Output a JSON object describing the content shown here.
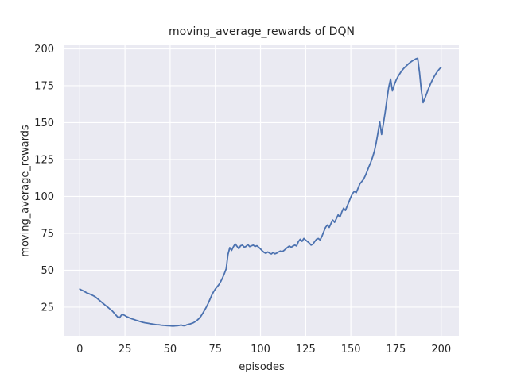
{
  "chart_data": {
    "type": "line",
    "title": "moving_average_rewards of DQN",
    "xlabel": "episodes",
    "ylabel": "moving_average_rewards",
    "x_ticks": [
      0,
      25,
      50,
      75,
      100,
      125,
      150,
      175,
      200
    ],
    "y_ticks": [
      25,
      50,
      75,
      100,
      125,
      150,
      175,
      200
    ],
    "xlim": [
      -8.5,
      209.8
    ],
    "ylim": [
      5.6,
      202.4
    ],
    "grid": true,
    "legend_position": "none",
    "style": "seaborn-darkgrid",
    "colors": {
      "line": "#4c72b0",
      "plot_background": "#eaeaf2",
      "gridline": "#ffffff",
      "figure_background": "#ffffff",
      "text": "#262626"
    },
    "series": [
      {
        "name": "moving_average_rewards",
        "x_start": 0,
        "x_step": 1,
        "values": [
          37.2,
          36.5,
          36.0,
          35.3,
          34.6,
          34.1,
          33.6,
          33.0,
          32.4,
          31.5,
          30.5,
          29.5,
          28.4,
          27.4,
          26.4,
          25.4,
          24.4,
          23.4,
          22.4,
          21.0,
          19.6,
          18.3,
          17.8,
          19.6,
          19.9,
          19.3,
          18.5,
          18.0,
          17.5,
          17.0,
          16.6,
          16.2,
          15.8,
          15.4,
          15.0,
          14.7,
          14.4,
          14.2,
          14.0,
          13.8,
          13.6,
          13.4,
          13.2,
          13.1,
          13.0,
          12.8,
          12.7,
          12.6,
          12.5,
          12.4,
          12.3,
          12.2,
          12.2,
          12.3,
          12.4,
          12.6,
          12.9,
          12.5,
          12.4,
          12.9,
          13.3,
          13.6,
          14.0,
          14.5,
          15.2,
          16.2,
          17.3,
          18.8,
          20.7,
          22.8,
          25.0,
          27.4,
          30.2,
          33.0,
          35.3,
          37.2,
          38.8,
          40.3,
          42.3,
          44.8,
          47.7,
          51.0,
          60.5,
          65.3,
          63.4,
          65.8,
          67.8,
          66.2,
          64.6,
          66.6,
          67.0,
          65.6,
          66.1,
          67.4,
          66.0,
          66.5,
          67.0,
          66.1,
          66.6,
          65.5,
          64.4,
          63.1,
          62.0,
          61.4,
          62.4,
          61.6,
          61.0,
          62.0,
          61.1,
          61.6,
          62.4,
          63.0,
          62.5,
          63.4,
          64.4,
          65.5,
          66.4,
          65.5,
          66.4,
          67.0,
          66.4,
          69.4,
          71.0,
          69.6,
          71.5,
          70.4,
          69.4,
          68.4,
          67.0,
          67.6,
          69.4,
          71.0,
          71.5,
          70.5,
          73.0,
          76.0,
          79.0,
          80.6,
          79.0,
          81.6,
          84.0,
          82.5,
          85.0,
          87.5,
          86.0,
          89.5,
          92.0,
          90.5,
          93.5,
          96.5,
          99.5,
          102.0,
          103.5,
          102.5,
          105.5,
          108.5,
          110.0,
          111.5,
          114.0,
          117.0,
          120.0,
          123.0,
          126.5,
          130.5,
          136.0,
          143.0,
          150.5,
          142.0,
          149.0,
          157.0,
          166.0,
          174.0,
          179.5,
          171.5,
          175.5,
          178.5,
          181.0,
          183.0,
          184.8,
          186.3,
          187.6,
          188.8,
          189.9,
          190.9,
          191.8,
          192.5,
          193.2,
          193.6,
          184.0,
          172.0,
          163.5,
          166.5,
          169.8,
          173.0,
          176.0,
          178.6,
          180.9,
          183.0,
          184.8,
          186.3,
          187.5
        ]
      }
    ]
  }
}
